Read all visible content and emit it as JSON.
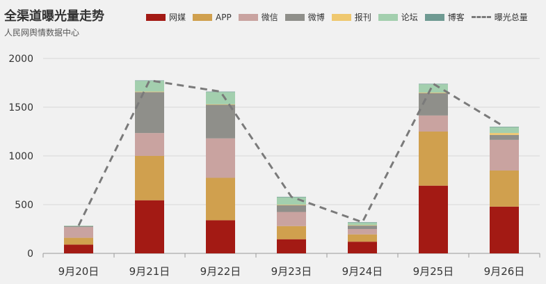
{
  "chart_data": {
    "type": "bar",
    "title": "全渠道曝光量走势",
    "subtitle": "人民网舆情数据中心",
    "categories": [
      "9月20日",
      "9月21日",
      "9月22日",
      "9月23日",
      "9月24日",
      "9月25日",
      "9月26日"
    ],
    "ylim": [
      0,
      2000
    ],
    "yticks": [
      0,
      500,
      1000,
      1500,
      2000
    ],
    "grid": true,
    "legend": "top",
    "stacked": true,
    "series": [
      {
        "name": "网媒",
        "color": "#a31a14",
        "values": [
          90,
          545,
          340,
          145,
          120,
          695,
          480
        ]
      },
      {
        "name": "APP",
        "color": "#d0a04e",
        "values": [
          70,
          455,
          435,
          135,
          75,
          555,
          370
        ]
      },
      {
        "name": "微信",
        "color": "#c9a3a0",
        "values": [
          110,
          235,
          405,
          145,
          55,
          165,
          315
        ]
      },
      {
        "name": "微博",
        "color": "#8f8f8a",
        "values": [
          10,
          420,
          345,
          70,
          35,
          230,
          50
        ]
      },
      {
        "name": "报刊",
        "color": "#efc86f",
        "values": [
          0,
          5,
          5,
          5,
          5,
          5,
          20
        ]
      },
      {
        "name": "论坛",
        "color": "#a3cfae",
        "values": [
          5,
          110,
          125,
          75,
          25,
          85,
          60
        ]
      },
      {
        "name": "博客",
        "color": "#6f9a92",
        "values": [
          0,
          5,
          5,
          5,
          5,
          5,
          5
        ]
      }
    ],
    "total": {
      "name": "曝光总量",
      "color": "#7a7a7a",
      "values": [
        285,
        1775,
        1660,
        580,
        320,
        1740,
        1300
      ]
    }
  }
}
